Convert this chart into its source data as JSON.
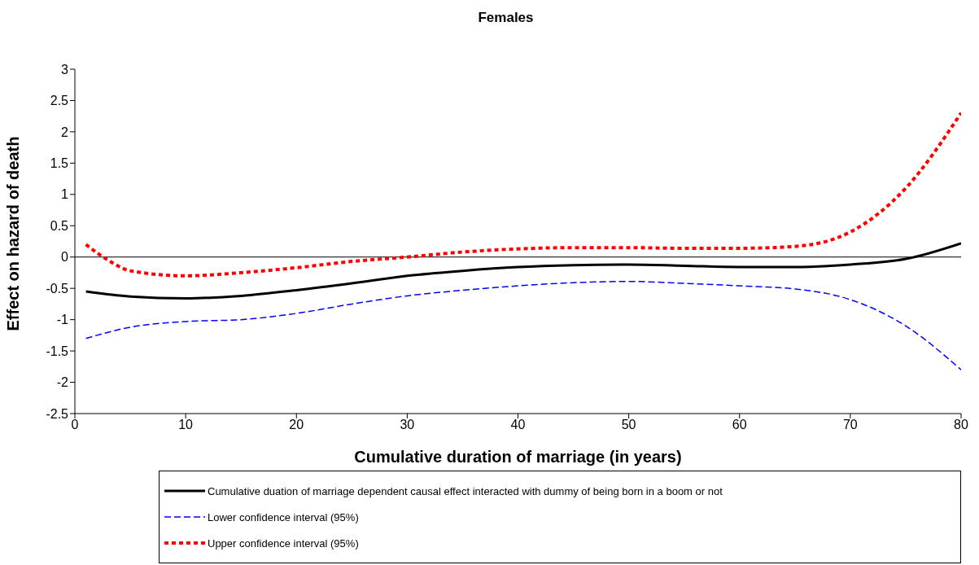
{
  "chart_data": {
    "type": "line",
    "title": "Females",
    "xlabel": "Cumulative duration of marriage (in years)",
    "ylabel": "Effect on hazard of death",
    "xlim": [
      0,
      80
    ],
    "xticks": [
      0,
      10,
      20,
      30,
      40,
      50,
      60,
      70,
      80
    ],
    "ylim": [
      -2.5,
      3
    ],
    "yticks": [
      -2.5,
      -2,
      -1.5,
      -1,
      -0.5,
      0,
      0.5,
      1,
      1.5,
      2,
      2.5,
      3
    ],
    "grid": false,
    "legend": "bottom",
    "marker": "none",
    "ref_lines": [
      {
        "axis": "y",
        "value": 0,
        "color": "#000000",
        "line_style": "solid"
      }
    ],
    "series": [
      {
        "name": "Cumulative duation of marriage dependent causal effect interacted with dummy of being born in a boom or not",
        "color": "#000000",
        "line_style": "solid",
        "x": [
          1,
          5,
          10,
          15,
          20,
          25,
          30,
          35,
          40,
          45,
          50,
          55,
          60,
          65,
          70,
          75,
          80
        ],
        "values": [
          -0.55,
          -0.63,
          -0.66,
          -0.62,
          -0.53,
          -0.42,
          -0.3,
          -0.22,
          -0.16,
          -0.13,
          -0.12,
          -0.14,
          -0.16,
          -0.16,
          -0.12,
          -0.03,
          0.22
        ]
      },
      {
        "name": "Lower confidence interval (95%)",
        "color": "#0000ff",
        "line_style": "dashed",
        "x": [
          1,
          5,
          10,
          15,
          20,
          25,
          30,
          35,
          40,
          45,
          50,
          55,
          60,
          65,
          70,
          75,
          80
        ],
        "values": [
          -1.3,
          -1.12,
          -1.03,
          -1.0,
          -0.9,
          -0.75,
          -0.62,
          -0.53,
          -0.46,
          -0.41,
          -0.39,
          -0.42,
          -0.46,
          -0.51,
          -0.68,
          -1.1,
          -1.8
        ]
      },
      {
        "name": "Upper confidence interval (95%)",
        "color": "#ff0000",
        "line_style": "dotted",
        "x": [
          1,
          3,
          5,
          10,
          15,
          20,
          25,
          30,
          35,
          40,
          45,
          50,
          55,
          60,
          65,
          70,
          75,
          80
        ],
        "values": [
          0.2,
          -0.05,
          -0.22,
          -0.3,
          -0.25,
          -0.17,
          -0.07,
          0.0,
          0.08,
          0.13,
          0.15,
          0.15,
          0.14,
          0.14,
          0.17,
          0.4,
          1.1,
          2.3
        ]
      }
    ]
  }
}
